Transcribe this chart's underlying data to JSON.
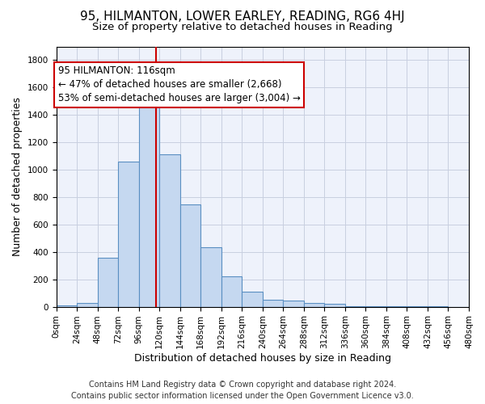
{
  "title": "95, HILMANTON, LOWER EARLEY, READING, RG6 4HJ",
  "subtitle": "Size of property relative to detached houses in Reading",
  "xlabel": "Distribution of detached houses by size in Reading",
  "ylabel": "Number of detached properties",
  "bin_edges": [
    0,
    24,
    48,
    72,
    96,
    120,
    144,
    168,
    192,
    216,
    240,
    264,
    288,
    312,
    336,
    360,
    384,
    408,
    432,
    456,
    480
  ],
  "bar_heights": [
    10,
    30,
    355,
    1060,
    1460,
    1110,
    745,
    435,
    220,
    108,
    53,
    45,
    28,
    20,
    5,
    5,
    3,
    2,
    1,
    0
  ],
  "bar_color": "#c5d8f0",
  "bar_edge_color": "#5a8fc2",
  "property_size": 116,
  "vline_color": "#cc0000",
  "annotation_line1": "95 HILMANTON: 116sqm",
  "annotation_line2": "← 47% of detached houses are smaller (2,668)",
  "annotation_line3": "53% of semi-detached houses are larger (3,004) →",
  "annotation_box_color": "#ffffff",
  "annotation_box_edge_color": "#cc0000",
  "ylim": [
    0,
    1900
  ],
  "yticks": [
    0,
    200,
    400,
    600,
    800,
    1000,
    1200,
    1400,
    1600,
    1800
  ],
  "xlim": [
    0,
    480
  ],
  "footer_line1": "Contains HM Land Registry data © Crown copyright and database right 2024.",
  "footer_line2": "Contains public sector information licensed under the Open Government Licence v3.0.",
  "bg_color": "#eef2fb",
  "grid_color": "#c8cfe0",
  "title_fontsize": 11,
  "subtitle_fontsize": 9.5,
  "tick_label_fontsize": 7.5,
  "axis_label_fontsize": 9,
  "footer_fontsize": 7,
  "annotation_fontsize": 8.5
}
